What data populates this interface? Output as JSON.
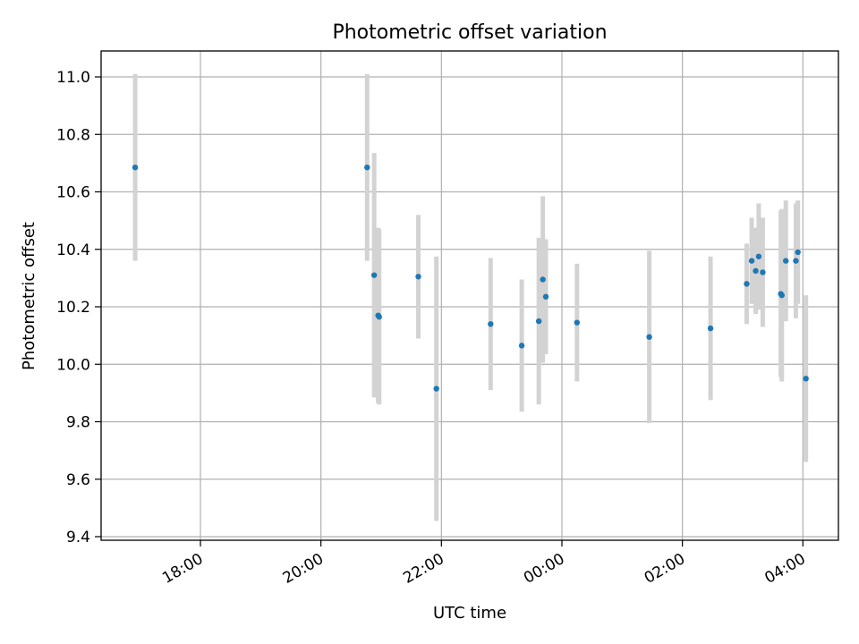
{
  "chart_data": {
    "type": "scatter",
    "title": "Photometric offset variation",
    "xlabel": "UTC time",
    "ylabel": "Photometric offset",
    "x_tick_labels": [
      "18:00",
      "20:00",
      "22:00",
      "00:00",
      "02:00",
      "04:00"
    ],
    "y_tick_labels": [
      "9.4",
      "9.6",
      "9.8",
      "10.0",
      "10.2",
      "10.4",
      "10.6",
      "10.8",
      "11.0"
    ],
    "grid": true,
    "colors": {
      "points": "#1f77b4",
      "errorbars": "#d3d3d3",
      "grid": "#b0b0b0"
    },
    "points": [
      {
        "time": "16:55",
        "y": 10.685,
        "err": 0.325
      },
      {
        "time": "20:46",
        "y": 10.685,
        "err": 0.325
      },
      {
        "time": "20:53",
        "y": 10.31,
        "err": 0.425
      },
      {
        "time": "20:57",
        "y": 10.17,
        "err": 0.305
      },
      {
        "time": "20:58",
        "y": 10.165,
        "err": 0.305
      },
      {
        "time": "21:37",
        "y": 10.305,
        "err": 0.215
      },
      {
        "time": "21:55",
        "y": 9.915,
        "err": 0.46
      },
      {
        "time": "22:49",
        "y": 10.14,
        "err": 0.23
      },
      {
        "time": "23:20",
        "y": 10.065,
        "err": 0.23
      },
      {
        "time": "23:37",
        "y": 10.15,
        "err": 0.29
      },
      {
        "time": "23:41",
        "y": 10.295,
        "err": 0.29
      },
      {
        "time": "23:44",
        "y": 10.235,
        "err": 0.2
      },
      {
        "time": "00:15",
        "y": 10.145,
        "err": 0.205
      },
      {
        "time": "01:27",
        "y": 10.095,
        "err": 0.3
      },
      {
        "time": "02:28",
        "y": 10.125,
        "err": 0.25
      },
      {
        "time": "03:04",
        "y": 10.28,
        "err": 0.14
      },
      {
        "time": "03:09",
        "y": 10.36,
        "err": 0.15
      },
      {
        "time": "03:13",
        "y": 10.325,
        "err": 0.15
      },
      {
        "time": "03:16",
        "y": 10.375,
        "err": 0.185
      },
      {
        "time": "03:20",
        "y": 10.32,
        "err": 0.19
      },
      {
        "time": "03:38",
        "y": 10.245,
        "err": 0.29
      },
      {
        "time": "03:39",
        "y": 10.24,
        "err": 0.3
      },
      {
        "time": "03:43",
        "y": 10.36,
        "err": 0.21
      },
      {
        "time": "03:53",
        "y": 10.36,
        "err": 0.2
      },
      {
        "time": "03:55",
        "y": 10.39,
        "err": 0.18
      },
      {
        "time": "04:03",
        "y": 9.95,
        "err": 0.29
      }
    ]
  }
}
